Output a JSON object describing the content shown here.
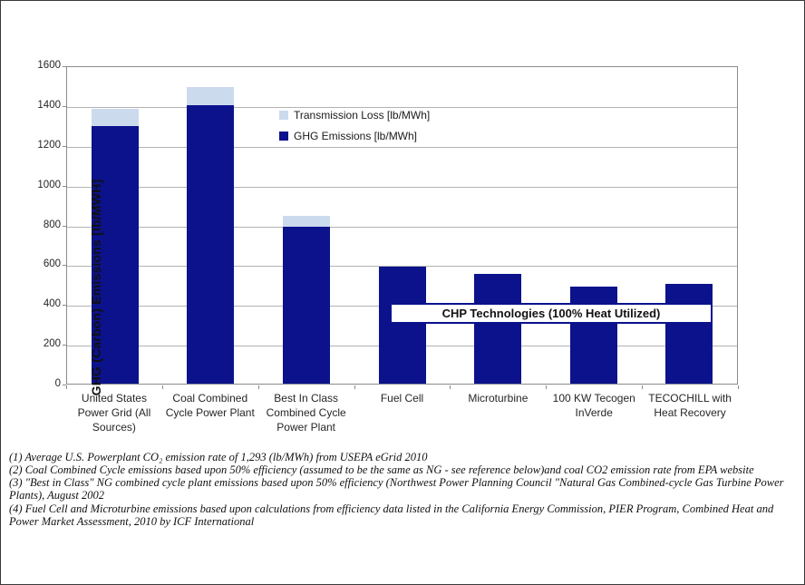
{
  "chart_data": {
    "type": "bar",
    "stacked": true,
    "title": "",
    "xlabel": "",
    "ylabel": "GHG (Carbon) Emissions [lb/MWH]",
    "ylim": [
      0,
      1600
    ],
    "yticks": [
      0,
      200,
      400,
      600,
      800,
      1000,
      1200,
      1400,
      1600
    ],
    "grid": true,
    "legend_position": "inside-upper-middle",
    "categories": [
      "United States Power Grid (All Sources)",
      "Coal Combined Cycle Power Plant",
      "Best In Class Combined Cycle Power Plant",
      "Fuel Cell",
      "Microturbine",
      "100 KW Tecogen InVerde",
      "TECOCHILL with Heat Recovery"
    ],
    "series": [
      {
        "name": "GHG Emissions [lb/MWh]",
        "color": "#0b128b",
        "values": [
          1293,
          1400,
          790,
          590,
          550,
          490,
          500
        ]
      },
      {
        "name": "Transmission Loss [lb/MWh]",
        "color": "#ccdaee",
        "values": [
          87,
          92,
          55,
          0,
          0,
          0,
          0
        ]
      }
    ],
    "legend": [
      {
        "label": "Transmission Loss [lb/MWh]",
        "color": "#ccdaee"
      },
      {
        "label": "GHG Emissions [lb/MWh]",
        "color": "#0b128b"
      }
    ],
    "annotation": "CHP Technologies (100% Heat Utilized)"
  },
  "footnotes": [
    "(1) Average U.S. Powerplant CO₂ emission rate of 1,293 (lb/MWh) from USEPA eGrid 2010",
    "(2) Coal Combined Cycle emissions based upon 50% efficiency (assumed to be the same as NG - see reference below)and coal CO2 emission rate from EPA website",
    "(3) \"Best in Class\" NG combined cycle plant emissions based upon 50% efficiency (Northwest Power Planning Council \"Natural Gas Combined-cycle Gas Turbine Power Plants), August 2002",
    "(4) Fuel Cell and Microturbine emissions based upon calculations from efficiency data listed in the California Energy Commission, PIER Program, Combined Heat and Power Market Assessment,  2010 by ICF International"
  ]
}
